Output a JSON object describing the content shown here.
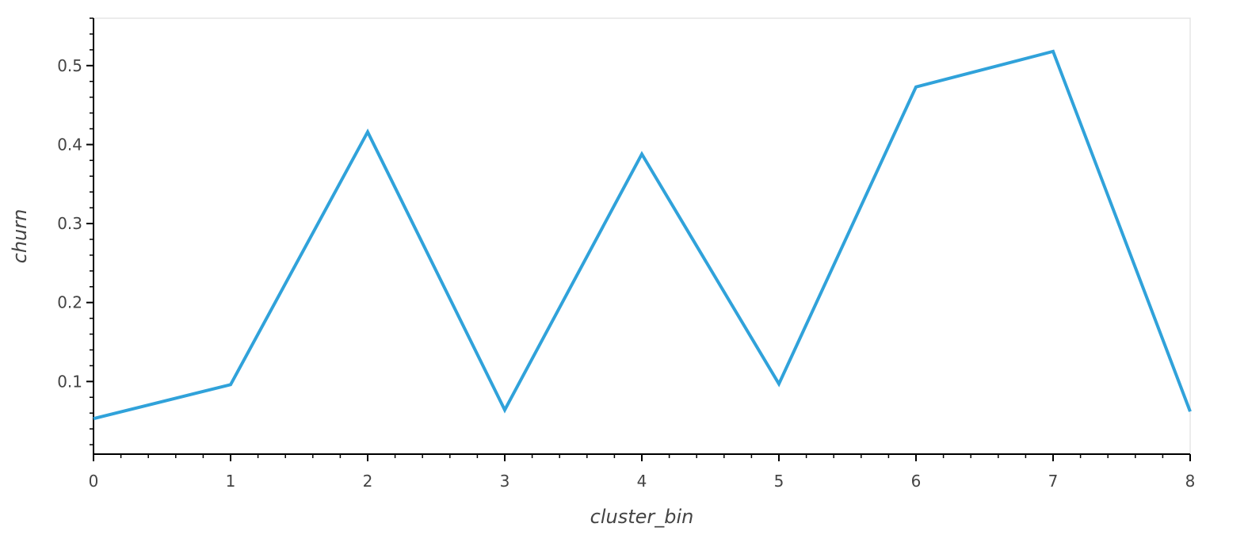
{
  "chart_data": {
    "type": "line",
    "xlabel": "cluster_bin",
    "ylabel": "churn",
    "xlim": [
      0,
      8
    ],
    "ylim": [
      0.008,
      0.56
    ],
    "xticks": [
      0,
      1,
      2,
      3,
      4,
      5,
      6,
      7,
      8
    ],
    "yticks": [
      0.1,
      0.2,
      0.3,
      0.4,
      0.5
    ],
    "x_minor_step": 0.2,
    "y_minor_step": 0.02,
    "grid": false,
    "series": [
      {
        "color": "#30a2da",
        "x": [
          0,
          1,
          2,
          3,
          4,
          5,
          6,
          7,
          8
        ],
        "y": [
          0.053,
          0.096,
          0.416,
          0.064,
          0.388,
          0.097,
          0.473,
          0.518,
          0.062
        ]
      }
    ]
  }
}
